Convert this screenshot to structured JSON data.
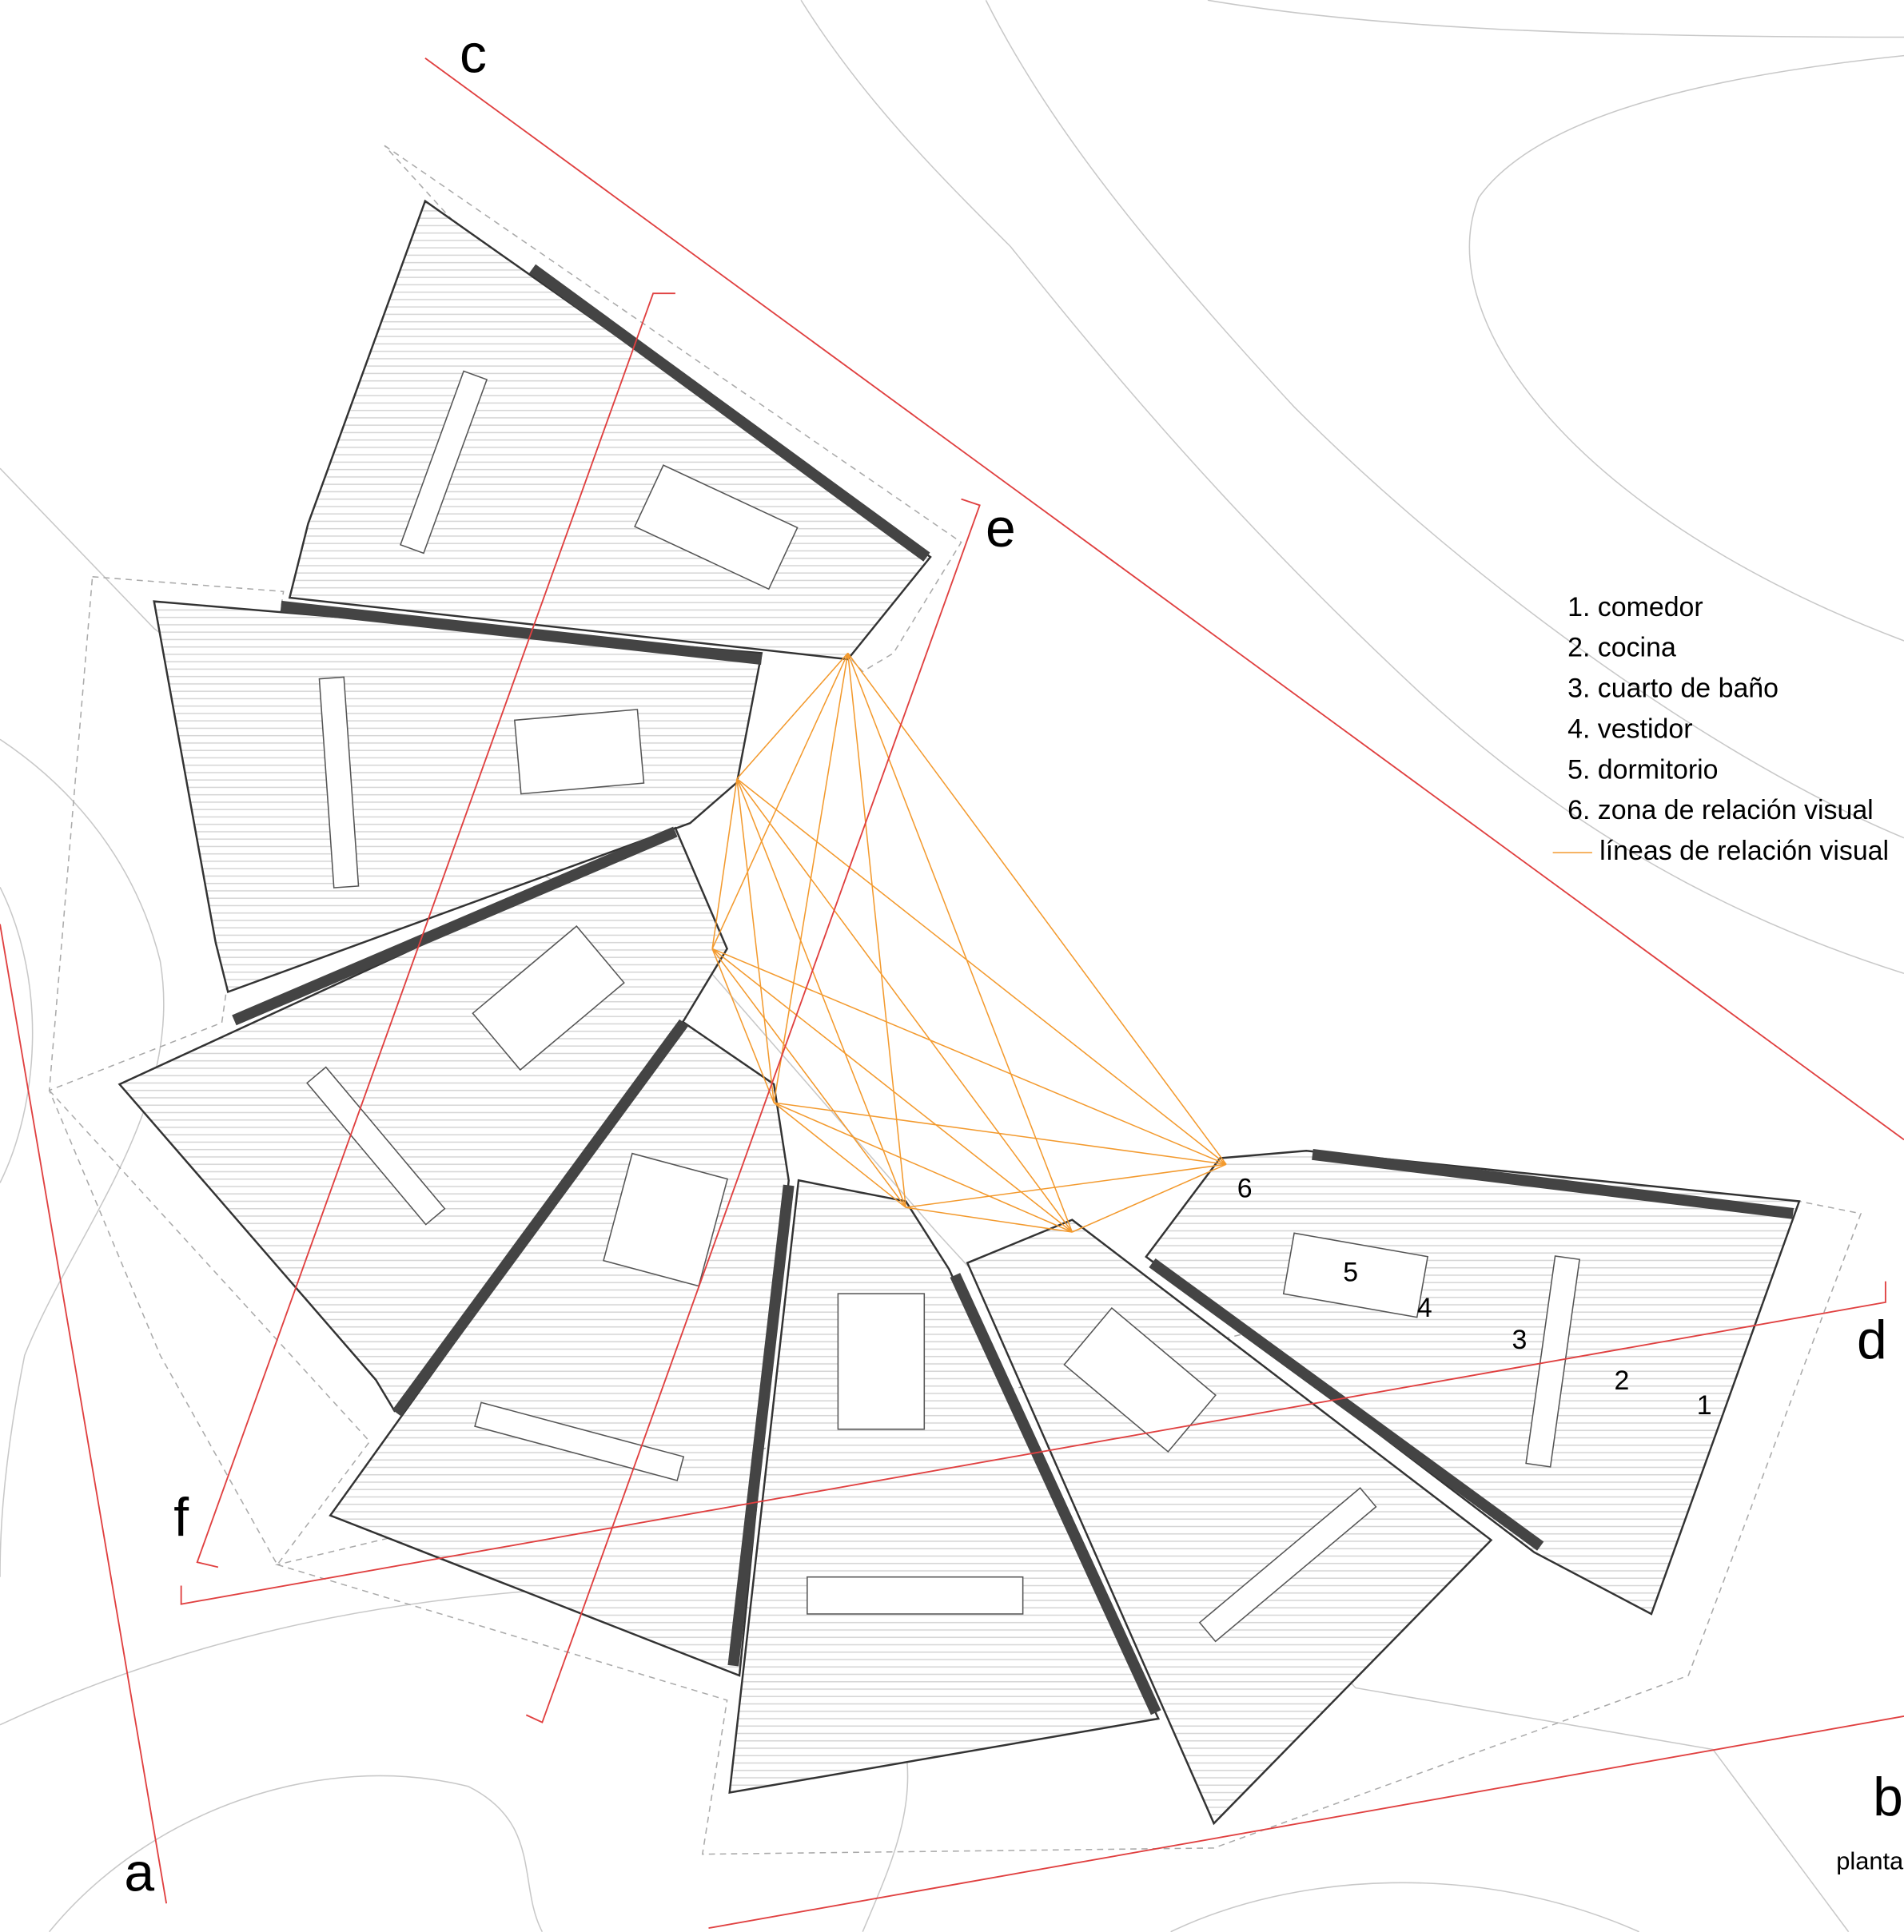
{
  "section_labels": {
    "a": "a",
    "b": "b",
    "c": "c",
    "d": "d",
    "e": "e",
    "f": "f"
  },
  "legend": {
    "items": [
      "1. comedor",
      "2. cocina",
      "3. cuarto de baño",
      "4. vestidor",
      "5. dormitorio",
      "6. zona de relación visual",
      "líneas de relación visual"
    ]
  },
  "room_numbers": [
    "1",
    "2",
    "3",
    "4",
    "5",
    "6"
  ],
  "caption": "planta"
}
